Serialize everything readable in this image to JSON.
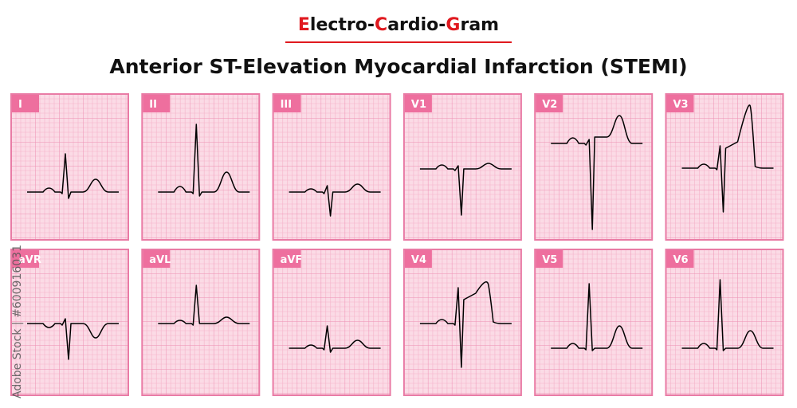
{
  "header": {
    "title_parts": [
      "E",
      "lectro-",
      "C",
      "ardio-",
      "G",
      "ram"
    ],
    "subtitle": "Anterior ST-Elevation Myocardial Infarction (STEMI)"
  },
  "leads": [
    "I",
    "II",
    "III",
    "V1",
    "V2",
    "V3",
    "aVR",
    "aVL",
    "aVF",
    "V4",
    "V5",
    "V6"
  ],
  "watermark": "Adobe Stock | #600916031"
}
